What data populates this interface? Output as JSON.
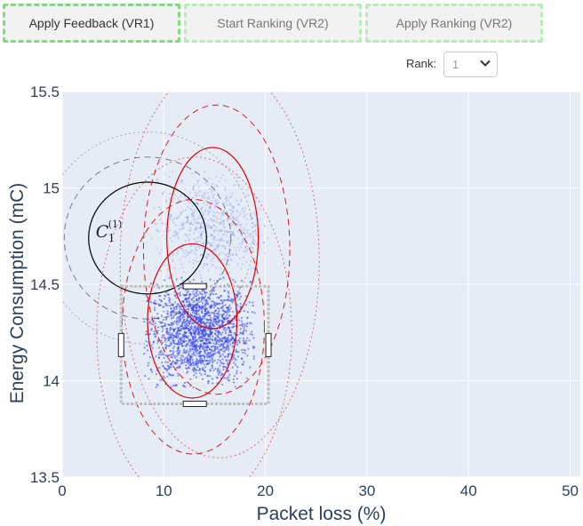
{
  "toolbar": {
    "apply_feedback_label": "Apply Feedback (VR1)",
    "start_ranking_label": "Start Ranking (VR2)",
    "apply_ranking_label": "Apply Ranking (VR2)"
  },
  "rank": {
    "label": "Rank:",
    "value": "1"
  },
  "colors": {
    "plot_bg": "#e5ecf6",
    "grid": "#ffffff",
    "axis_text": "#2a3f5f",
    "points": "#3344ee",
    "highlight": "#e00000",
    "cluster_outline": "#000000",
    "selection_box": "#bbbbbb"
  },
  "icons": {
    "dropdown": "chevron-down-icon"
  },
  "chart_data": {
    "type": "scatter",
    "xlabel": "Packet loss (%)",
    "ylabel": "Energy Consumption (mC)",
    "xlim": [
      0,
      51
    ],
    "ylim": [
      13.5,
      15.5
    ],
    "x_ticks": [
      "0",
      "10",
      "20",
      "30",
      "40",
      "50"
    ],
    "y_ticks": [
      "13.5",
      "14",
      "14.5",
      "15",
      "15.5"
    ],
    "grid": true,
    "point_clouds": [
      {
        "cx": 13.5,
        "cy": 14.25,
        "sx": 2.5,
        "sy": 0.13,
        "count": 1800,
        "opacity": 0.55
      },
      {
        "cx": 14.5,
        "cy": 14.8,
        "sx": 2.6,
        "sy": 0.13,
        "count": 700,
        "opacity": 0.18
      }
    ],
    "ellipses": [
      {
        "group": "cluster",
        "cx": 8.4,
        "cy": 14.74,
        "rx": 5.8,
        "ry": 0.29,
        "style": "solid",
        "color": "black"
      },
      {
        "group": "cluster",
        "cx": 8.4,
        "cy": 14.74,
        "rx": 8.2,
        "ry": 0.42,
        "style": "dashed",
        "color": "gray"
      },
      {
        "group": "cluster",
        "cx": 8.4,
        "cy": 14.74,
        "rx": 10.4,
        "ry": 0.55,
        "style": "dotted",
        "color": "gray"
      },
      {
        "group": "upper",
        "cx": 14.8,
        "cy": 14.74,
        "rx": 4.5,
        "ry": 0.47,
        "style": "solid",
        "color": "red"
      },
      {
        "group": "upper",
        "cx": 15.2,
        "cy": 14.68,
        "rx": 7.2,
        "ry": 0.75,
        "style": "dashed",
        "color": "red"
      },
      {
        "group": "upper",
        "cx": 15.5,
        "cy": 14.62,
        "rx": 9.8,
        "ry": 1.02,
        "style": "dotted",
        "color": "red"
      },
      {
        "group": "lower",
        "cx": 12.8,
        "cy": 14.31,
        "rx": 4.4,
        "ry": 0.4,
        "style": "solid",
        "color": "red"
      },
      {
        "group": "lower",
        "cx": 12.9,
        "cy": 14.28,
        "rx": 7.0,
        "ry": 0.66,
        "style": "dashed",
        "color": "red"
      },
      {
        "group": "lower",
        "cx": 13.0,
        "cy": 14.25,
        "rx": 9.6,
        "ry": 0.91,
        "style": "dotted",
        "color": "red"
      }
    ],
    "selection_box": {
      "x": [
        5.8,
        20.3
      ],
      "y": [
        13.88,
        14.49
      ]
    },
    "annotations": [
      {
        "text": "C",
        "sub": "1",
        "sup": "(1)",
        "x": 3.3,
        "y": 14.78
      }
    ]
  }
}
